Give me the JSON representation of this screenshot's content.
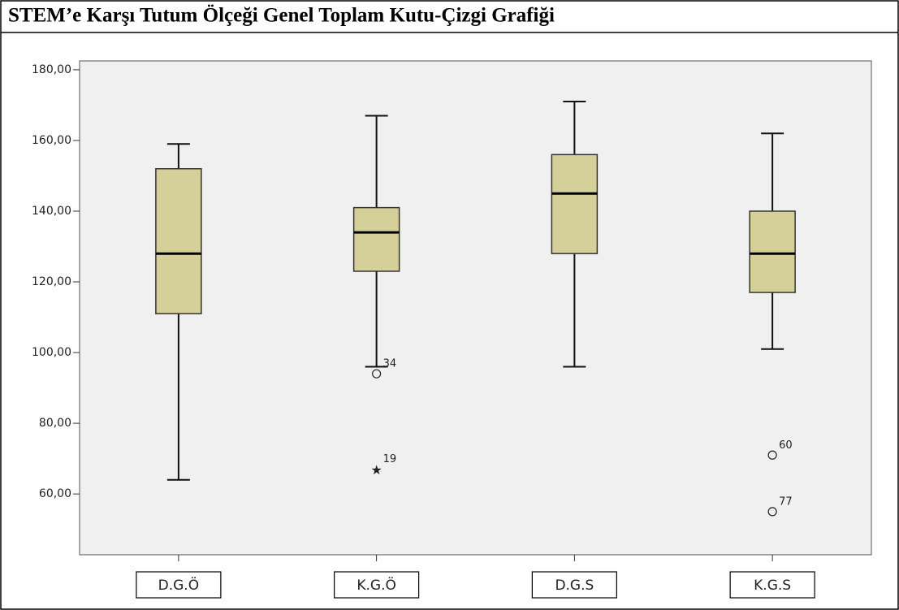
{
  "chart_data": {
    "type": "box",
    "title": "STEM’e Karşı Tutum Ölçeği Genel Toplam Kutu-Çizgi Grafiği",
    "categories": [
      "D.G.Ö",
      "K.G.Ö",
      "D.G.S",
      "K.G.S"
    ],
    "color": "#d5cf9a",
    "boxes": [
      {
        "min": 64,
        "q1": 111,
        "median": 128,
        "q3": 152,
        "max": 159,
        "outliers": []
      },
      {
        "min": 96,
        "q1": 123,
        "median": 134,
        "q3": 141,
        "max": 167,
        "outliers": [
          {
            "value": 94,
            "label": "34",
            "marker": "circle"
          },
          {
            "value": 67,
            "label": "19",
            "marker": "star"
          }
        ]
      },
      {
        "min": 96,
        "q1": 128,
        "median": 145,
        "q3": 156,
        "max": 171,
        "outliers": []
      },
      {
        "min": 101,
        "q1": 117,
        "median": 128,
        "q3": 140,
        "max": 162,
        "outliers": [
          {
            "value": 71,
            "label": "60",
            "marker": "circle"
          },
          {
            "value": 55,
            "label": "77",
            "marker": "circle"
          }
        ]
      }
    ],
    "ylim": [
      42.8,
      182.5
    ],
    "yticks": [
      {
        "value": 60,
        "label": "60,00"
      },
      {
        "value": 80,
        "label": "80,00"
      },
      {
        "value": 100,
        "label": "100,00"
      },
      {
        "value": 120,
        "label": "120,00"
      },
      {
        "value": 140,
        "label": "140,00"
      },
      {
        "value": 160,
        "label": "160,00"
      },
      {
        "value": 180,
        "label": "180,00"
      }
    ]
  }
}
